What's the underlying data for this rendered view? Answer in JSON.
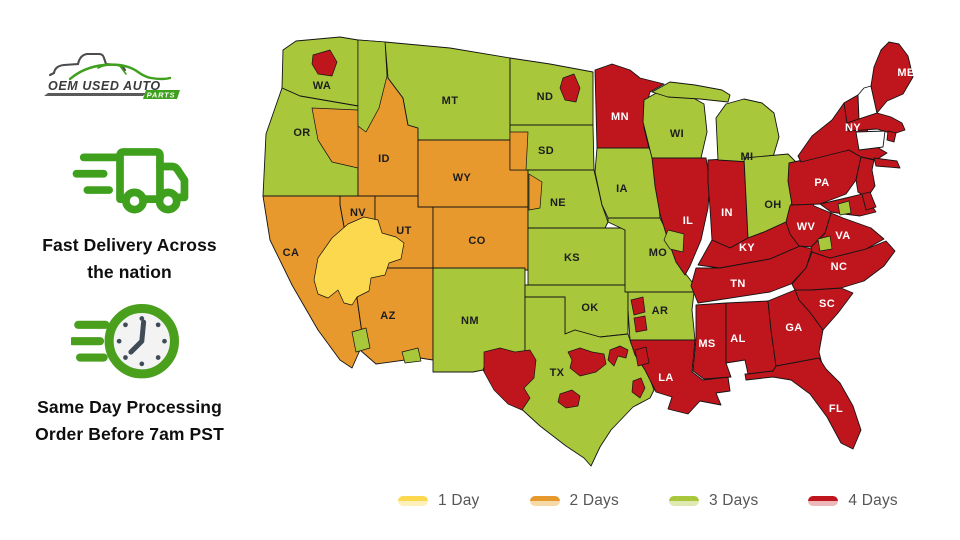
{
  "brand": {
    "line1": "OEM USED AUTO",
    "parts": "PARTS",
    "green": "#3ea01d",
    "gray": "#4c4c4c"
  },
  "features": [
    {
      "icon": "delivery-truck-icon",
      "lines": [
        "Fast Delivery Across",
        "the nation"
      ]
    },
    {
      "icon": "clock-icon",
      "lines": [
        "Same Day Processing",
        "Order Before 7am PST"
      ]
    }
  ],
  "legend": {
    "items": [
      {
        "label": "1 Day",
        "color": "#fbd84d",
        "light": "#fdf0b8"
      },
      {
        "label": "2 Days",
        "color": "#e7992d",
        "light": "#f5d9a6"
      },
      {
        "label": "3 Days",
        "color": "#a8c73b",
        "light": "#dde9b0"
      },
      {
        "label": "4 Days",
        "color": "#bf161d",
        "light": "#edb8ba"
      }
    ]
  },
  "map": {
    "stroke_color": "#141414",
    "no_service_fill": "#ffffff",
    "label_dark": "#1d1d1d",
    "label_light": "#ffffff",
    "states": [
      {
        "id": "WA",
        "label": "WA",
        "zone": "3 Days"
      },
      {
        "id": "OR",
        "label": "OR",
        "zone": "3 Days"
      },
      {
        "id": "ID",
        "label": "ID",
        "zone": "2 Days"
      },
      {
        "id": "MT",
        "label": "MT",
        "zone": "3 Days"
      },
      {
        "id": "WY",
        "label": "WY",
        "zone": "2 Days"
      },
      {
        "id": "NV",
        "label": "NV",
        "zone": "2 Days"
      },
      {
        "id": "UT",
        "label": "UT",
        "zone": "2 Days"
      },
      {
        "id": "CA",
        "label": "CA",
        "zone": "2 Days"
      },
      {
        "id": "CO",
        "label": "CO",
        "zone": "2 Days"
      },
      {
        "id": "AZ",
        "label": "AZ",
        "zone": "2 Days"
      },
      {
        "id": "NM",
        "label": "NM",
        "zone": "3 Days"
      },
      {
        "id": "ND",
        "label": "ND",
        "zone": "3 Days"
      },
      {
        "id": "SD",
        "label": "SD",
        "zone": "3 Days"
      },
      {
        "id": "NE",
        "label": "NE",
        "zone": "3 Days"
      },
      {
        "id": "KS",
        "label": "KS",
        "zone": "3 Days"
      },
      {
        "id": "OK",
        "label": "OK",
        "zone": "3 Days"
      },
      {
        "id": "TX",
        "label": "TX",
        "zone": "3 Days"
      },
      {
        "id": "MN",
        "label": "MN",
        "zone": "4 Days"
      },
      {
        "id": "IA",
        "label": "IA",
        "zone": "3 Days"
      },
      {
        "id": "MO",
        "label": "MO",
        "zone": "3 Days"
      },
      {
        "id": "AR",
        "label": "AR",
        "zone": "3 Days"
      },
      {
        "id": "LA",
        "label": "LA",
        "zone": "4 Days"
      },
      {
        "id": "WI",
        "label": "WI",
        "zone": "3 Days"
      },
      {
        "id": "IL",
        "label": "IL",
        "zone": "4 Days"
      },
      {
        "id": "IN",
        "label": "IN",
        "zone": "4 Days"
      },
      {
        "id": "MI",
        "label": "MI",
        "zone": "3 Days"
      },
      {
        "id": "OH",
        "label": "OH",
        "zone": "3 Days"
      },
      {
        "id": "KY",
        "label": "KY",
        "zone": "4 Days"
      },
      {
        "id": "TN",
        "label": "TN",
        "zone": "4 Days"
      },
      {
        "id": "MS",
        "label": "MS",
        "zone": "4 Days"
      },
      {
        "id": "AL",
        "label": "AL",
        "zone": "4 Days"
      },
      {
        "id": "GA",
        "label": "GA",
        "zone": "4 Days"
      },
      {
        "id": "FL",
        "label": "FL",
        "zone": "4 Days"
      },
      {
        "id": "SC",
        "label": "SC",
        "zone": "4 Days"
      },
      {
        "id": "NC",
        "label": "NC",
        "zone": "4 Days"
      },
      {
        "id": "VA",
        "label": "VA",
        "zone": "4 Days"
      },
      {
        "id": "WV",
        "label": "WV",
        "zone": "4 Days"
      },
      {
        "id": "PA",
        "label": "PA",
        "zone": "4 Days"
      },
      {
        "id": "NY",
        "label": "NY",
        "zone": "4 Days"
      },
      {
        "id": "NJ",
        "label": "",
        "zone": "4 Days"
      },
      {
        "id": "MD",
        "label": "",
        "zone": "4 Days"
      },
      {
        "id": "DE",
        "label": "",
        "zone": "4 Days"
      },
      {
        "id": "VT",
        "label": "",
        "zone": "4 Days"
      },
      {
        "id": "NH",
        "label": "",
        "zone": null
      },
      {
        "id": "MA",
        "label": "",
        "zone": "4 Days"
      },
      {
        "id": "RI",
        "label": "",
        "zone": "4 Days"
      },
      {
        "id": "CT",
        "label": "",
        "zone": null
      },
      {
        "id": "ME",
        "label": "ME",
        "zone": "4 Days"
      }
    ],
    "patches": [
      {
        "id": "wa-seattle",
        "zone": "4 Days"
      },
      {
        "id": "or-east",
        "zone": "2 Days"
      },
      {
        "id": "id-north",
        "zone": "3 Days"
      },
      {
        "id": "sw-desert",
        "zone": "1 Day"
      },
      {
        "id": "az-yuma",
        "zone": "3 Days"
      },
      {
        "id": "az-south",
        "zone": "3 Days"
      },
      {
        "id": "nd-east",
        "zone": "4 Days"
      },
      {
        "id": "sd-west",
        "zone": "2 Days"
      },
      {
        "id": "ne-west",
        "zone": "2 Days"
      },
      {
        "id": "il-stlouis",
        "zone": "3 Days"
      },
      {
        "id": "va-dc",
        "zone": "3 Days"
      },
      {
        "id": "va-richmond",
        "zone": "3 Days"
      },
      {
        "id": "tx-west",
        "zone": "4 Days"
      },
      {
        "id": "tx-dfw",
        "zone": "4 Days"
      },
      {
        "id": "tx-northeast",
        "zone": "4 Days"
      },
      {
        "id": "tx-houston",
        "zone": "4 Days"
      },
      {
        "id": "tx-austin",
        "zone": "4 Days"
      },
      {
        "id": "ar-west-north",
        "zone": "4 Days"
      },
      {
        "id": "ar-west-south",
        "zone": "4 Days"
      },
      {
        "id": "la-northwest",
        "zone": "4 Days"
      }
    ]
  }
}
